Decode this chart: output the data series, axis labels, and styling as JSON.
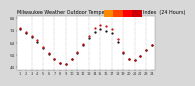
{
  "title": "Milwaukee Weather Outdoor Temperature  vs Heat Index  (24 Hours)",
  "title_fontsize": 3.5,
  "bg_color": "#d8d8d8",
  "plot_bg_color": "#ffffff",
  "ylim": [
    42,
    86
  ],
  "yticks": [
    44,
    54,
    64,
    74,
    84
  ],
  "hours": [
    1,
    2,
    3,
    4,
    5,
    6,
    7,
    8,
    9,
    10,
    11,
    12,
    13,
    14,
    15,
    16,
    17,
    18,
    19,
    20,
    21,
    22,
    23,
    24
  ],
  "temp": [
    75,
    72,
    69,
    65,
    60,
    55,
    51,
    48,
    47,
    51,
    56,
    62,
    68,
    73,
    75,
    74,
    72,
    65,
    56,
    51,
    50,
    53,
    58,
    62
  ],
  "heat": [
    76,
    73,
    70,
    66,
    61,
    56,
    51,
    48,
    47,
    51,
    57,
    63,
    70,
    76,
    79,
    78,
    75,
    67,
    57,
    51,
    50,
    53,
    58,
    62
  ],
  "temp_color": "#000000",
  "heat_color": "#cc0000",
  "grid_color": "#999999",
  "legend_colors": [
    "#ff8800",
    "#ff4400",
    "#ff0000",
    "#cc0000"
  ],
  "vgrid_positions": [
    3,
    5,
    7,
    9,
    11,
    13,
    15,
    17,
    19,
    21,
    23
  ],
  "marker_size": 1.2,
  "tick_fontsize": 2.5,
  "ytick_fontsize": 3.0
}
